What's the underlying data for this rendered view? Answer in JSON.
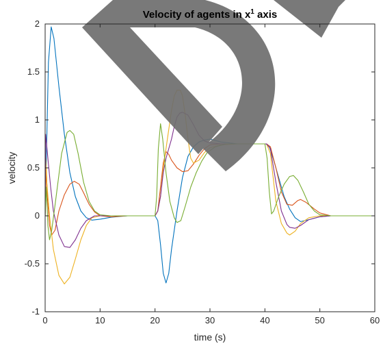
{
  "chart_data": {
    "type": "line",
    "title": "Velocity of agents in x",
    "title_superscript": "1",
    "title_suffix": " axis",
    "xlabel": "time (s)",
    "ylabel": "velocity",
    "xlim": [
      0,
      60
    ],
    "ylim": [
      -1,
      2
    ],
    "xticks": [
      0,
      10,
      20,
      30,
      40,
      50,
      60
    ],
    "yticks": [
      -1,
      -0.5,
      0,
      0.5,
      1,
      1.5,
      2
    ],
    "ytick_labels": [
      "-1",
      "-0.5",
      "0",
      "0.5",
      "1",
      "1.5",
      "2"
    ],
    "grid": false,
    "watermark": "D",
    "series": [
      {
        "color": "#0072BD",
        "points": [
          [
            0,
            0
          ],
          [
            0.3,
            0.8
          ],
          [
            0.6,
            1.6
          ],
          [
            1.1,
            1.97
          ],
          [
            1.6,
            1.85
          ],
          [
            2.5,
            1.35
          ],
          [
            3.5,
            0.85
          ],
          [
            4.5,
            0.45
          ],
          [
            5.5,
            0.2
          ],
          [
            6.5,
            0.05
          ],
          [
            7.5,
            -0.02
          ],
          [
            8.5,
            -0.045
          ],
          [
            10,
            -0.035
          ],
          [
            12,
            -0.015
          ],
          [
            15,
            0
          ],
          [
            20,
            0
          ],
          [
            20.5,
            -0.05
          ],
          [
            21,
            -0.3
          ],
          [
            21.5,
            -0.6
          ],
          [
            22,
            -0.7
          ],
          [
            22.5,
            -0.6
          ],
          [
            23,
            -0.35
          ],
          [
            24,
            0.05
          ],
          [
            25,
            0.4
          ],
          [
            26,
            0.62
          ],
          [
            27,
            0.72
          ],
          [
            28,
            0.77
          ],
          [
            29,
            0.79
          ],
          [
            30,
            0.8
          ],
          [
            32,
            0.77
          ],
          [
            35,
            0.75
          ],
          [
            40.2,
            0.75
          ],
          [
            40.8,
            0.72
          ],
          [
            41.5,
            0.6
          ],
          [
            42.5,
            0.4
          ],
          [
            43.5,
            0.2
          ],
          [
            44.5,
            0.07
          ],
          [
            45.5,
            -0.02
          ],
          [
            46.5,
            -0.06
          ],
          [
            48,
            -0.04
          ],
          [
            50,
            -0.01
          ],
          [
            52,
            0
          ],
          [
            60,
            0
          ]
        ]
      },
      {
        "color": "#D95319",
        "points": [
          [
            0,
            0
          ],
          [
            0.2,
            0.5
          ],
          [
            0.4,
            0.2
          ],
          [
            0.8,
            -0.1
          ],
          [
            1.2,
            -0.2
          ],
          [
            1.8,
            -0.15
          ],
          [
            2.5,
            0.05
          ],
          [
            3.5,
            0.22
          ],
          [
            4.5,
            0.33
          ],
          [
            5.3,
            0.36
          ],
          [
            6.2,
            0.33
          ],
          [
            7,
            0.24
          ],
          [
            8,
            0.12
          ],
          [
            9,
            0.04
          ],
          [
            10,
            0
          ],
          [
            12,
            -0.01
          ],
          [
            15,
            0
          ],
          [
            20,
            0
          ],
          [
            20.5,
            0.05
          ],
          [
            21,
            0.3
          ],
          [
            21.5,
            0.55
          ],
          [
            22,
            0.67
          ],
          [
            22.5,
            0.64
          ],
          [
            23,
            0.58
          ],
          [
            24,
            0.5
          ],
          [
            25,
            0.46
          ],
          [
            26,
            0.47
          ],
          [
            27,
            0.54
          ],
          [
            28,
            0.63
          ],
          [
            29,
            0.7
          ],
          [
            30,
            0.74
          ],
          [
            32,
            0.75
          ],
          [
            35,
            0.75
          ],
          [
            40.3,
            0.75
          ],
          [
            41,
            0.72
          ],
          [
            42,
            0.5
          ],
          [
            43,
            0.25
          ],
          [
            44,
            0.12
          ],
          [
            45,
            0.11
          ],
          [
            46,
            0.16
          ],
          [
            46.5,
            0.17
          ],
          [
            47.5,
            0.14
          ],
          [
            49,
            0.07
          ],
          [
            50,
            0.03
          ],
          [
            52,
            0
          ],
          [
            60,
            0
          ]
        ]
      },
      {
        "color": "#EDB120",
        "points": [
          [
            0,
            0
          ],
          [
            0.1,
            0.6
          ],
          [
            0.3,
            0.35
          ],
          [
            0.8,
            0
          ],
          [
            1.5,
            -0.35
          ],
          [
            2.5,
            -0.62
          ],
          [
            3.5,
            -0.71
          ],
          [
            4.5,
            -0.64
          ],
          [
            5.5,
            -0.45
          ],
          [
            6.5,
            -0.25
          ],
          [
            7.5,
            -0.1
          ],
          [
            8.5,
            -0.02
          ],
          [
            10,
            0
          ],
          [
            15,
            0
          ],
          [
            20,
            0
          ],
          [
            20.5,
            0.05
          ],
          [
            21,
            0.2
          ],
          [
            21.5,
            0.5
          ],
          [
            22,
            0.7
          ],
          [
            22.5,
            0.9
          ],
          [
            23,
            1.1
          ],
          [
            23.5,
            1.25
          ],
          [
            24,
            1.31
          ],
          [
            24.6,
            1.31
          ],
          [
            25,
            1.25
          ],
          [
            25.5,
            1.05
          ],
          [
            26,
            0.8
          ],
          [
            26.5,
            0.6
          ],
          [
            27,
            0.55
          ],
          [
            28,
            0.58
          ],
          [
            29,
            0.66
          ],
          [
            30,
            0.71
          ],
          [
            32,
            0.74
          ],
          [
            35,
            0.75
          ],
          [
            40.3,
            0.75
          ],
          [
            41,
            0.65
          ],
          [
            41.5,
            0.4
          ],
          [
            42,
            0.15
          ],
          [
            43,
            -0.08
          ],
          [
            44,
            -0.18
          ],
          [
            44.5,
            -0.2
          ],
          [
            45.5,
            -0.16
          ],
          [
            46.5,
            -0.08
          ],
          [
            48,
            -0.02
          ],
          [
            50,
            0
          ],
          [
            60,
            0
          ]
        ]
      },
      {
        "color": "#7E2F8E",
        "points": [
          [
            0,
            0
          ],
          [
            0.1,
            0.85
          ],
          [
            0.5,
            0.6
          ],
          [
            1,
            0.3
          ],
          [
            1.5,
            0.05
          ],
          [
            2.5,
            -0.2
          ],
          [
            3.5,
            -0.32
          ],
          [
            4.5,
            -0.33
          ],
          [
            5.5,
            -0.25
          ],
          [
            6.5,
            -0.13
          ],
          [
            7.5,
            -0.05
          ],
          [
            9,
            0
          ],
          [
            12,
            0
          ],
          [
            20,
            0
          ],
          [
            20.5,
            0.05
          ],
          [
            21,
            0.2
          ],
          [
            21.5,
            0.45
          ],
          [
            22,
            0.6
          ],
          [
            22.5,
            0.7
          ],
          [
            23,
            0.8
          ],
          [
            23.5,
            0.93
          ],
          [
            24,
            1.03
          ],
          [
            24.5,
            1.07
          ],
          [
            25,
            1.08
          ],
          [
            26,
            1.05
          ],
          [
            27,
            0.95
          ],
          [
            28,
            0.84
          ],
          [
            29,
            0.78
          ],
          [
            30,
            0.76
          ],
          [
            32,
            0.75
          ],
          [
            35,
            0.75
          ],
          [
            40.3,
            0.75
          ],
          [
            41,
            0.7
          ],
          [
            42,
            0.35
          ],
          [
            43,
            0.05
          ],
          [
            44,
            -0.09
          ],
          [
            44.5,
            -0.12
          ],
          [
            45.5,
            -0.13
          ],
          [
            46.5,
            -0.1
          ],
          [
            48,
            -0.04
          ],
          [
            50,
            -0.01
          ],
          [
            52,
            0
          ],
          [
            60,
            0
          ]
        ]
      },
      {
        "color": "#77AC30",
        "points": [
          [
            0,
            0
          ],
          [
            0.2,
            0.3
          ],
          [
            0.5,
            -0.1
          ],
          [
            0.8,
            -0.25
          ],
          [
            1.2,
            -0.15
          ],
          [
            2,
            0.2
          ],
          [
            3,
            0.65
          ],
          [
            4,
            0.87
          ],
          [
            4.5,
            0.89
          ],
          [
            5.2,
            0.85
          ],
          [
            6,
            0.65
          ],
          [
            7,
            0.35
          ],
          [
            8,
            0.15
          ],
          [
            9,
            0.05
          ],
          [
            10,
            0.01
          ],
          [
            12,
            0
          ],
          [
            20,
            0
          ],
          [
            20.3,
            0.2
          ],
          [
            20.6,
            0.7
          ],
          [
            21,
            0.96
          ],
          [
            21.4,
            0.8
          ],
          [
            22,
            0.45
          ],
          [
            22.7,
            0.15
          ],
          [
            23.5,
            -0.02
          ],
          [
            24,
            -0.07
          ],
          [
            24.7,
            -0.05
          ],
          [
            25.5,
            0.1
          ],
          [
            26.5,
            0.3
          ],
          [
            27.5,
            0.45
          ],
          [
            28.5,
            0.57
          ],
          [
            29.5,
            0.66
          ],
          [
            31,
            0.72
          ],
          [
            33,
            0.75
          ],
          [
            35,
            0.75
          ],
          [
            40,
            0.75
          ],
          [
            40.4,
            0.6
          ],
          [
            40.8,
            0.25
          ],
          [
            41.2,
            0.02
          ],
          [
            41.6,
            0.05
          ],
          [
            42.5,
            0.2
          ],
          [
            43.5,
            0.33
          ],
          [
            44.5,
            0.41
          ],
          [
            45.2,
            0.42
          ],
          [
            46,
            0.37
          ],
          [
            47,
            0.25
          ],
          [
            48,
            0.12
          ],
          [
            49,
            0.05
          ],
          [
            50,
            0.01
          ],
          [
            52,
            0
          ],
          [
            60,
            0
          ]
        ]
      }
    ]
  }
}
